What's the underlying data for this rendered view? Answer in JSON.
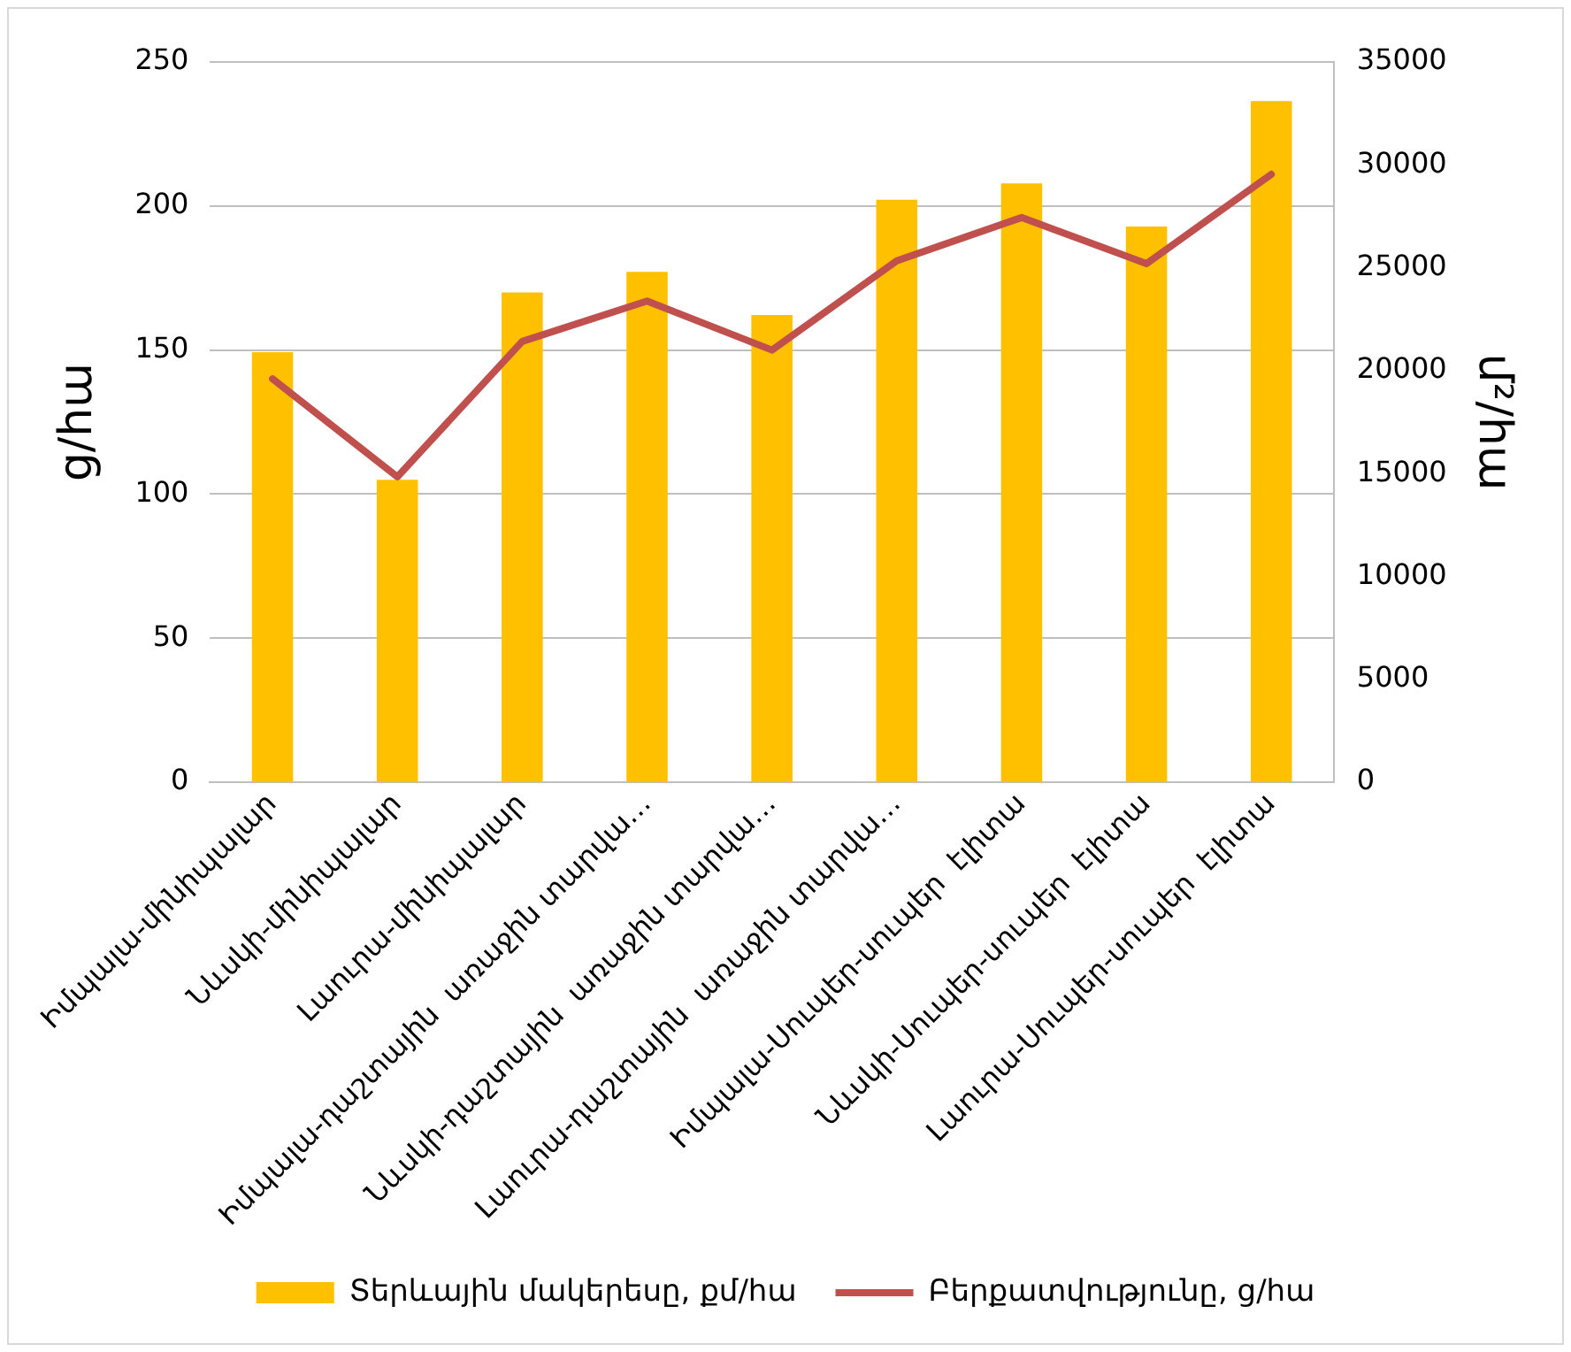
{
  "chart_data": {
    "type": "bar",
    "categories": [
      "Իմպալա-մինիպալար",
      "Նևսկի-մինիպալար",
      "Լաուրա-մինիպալար",
      "Իմպալա-դաշտային  առաջին տարվա…",
      "Նևսկի-դաշտային  առաջին տարվա…",
      "Լաուրա-դաշտային  առաջին տարվա…",
      "Իմպալա-Սուպեր-սուպեր  էլիտա",
      "Նևսկի-Սուպեր-սուպեր  էլիտա",
      "Լաուրա-Սուպեր-սուպեր  էլիտա"
    ],
    "series": [
      {
        "name": "Տերևային մակերեսը, քմ/հա",
        "axis": "y2",
        "color": "#ffc000",
        "values": [
          20900,
          14700,
          23800,
          24800,
          22700,
          28300,
          29100,
          27000,
          33100
        ]
      },
      {
        "name": "Բերքատվությունը, ց/հա",
        "type": "line",
        "color": "#c0504d",
        "values": [
          140,
          106,
          153,
          167,
          150,
          181,
          196,
          180,
          211
        ]
      }
    ],
    "ylabel": "ց/հա",
    "y2label": "մ²/հա",
    "ylim": [
      0,
      250
    ],
    "yticks": [
      0,
      50,
      100,
      150,
      200,
      250
    ],
    "y2lim": [
      0,
      35000
    ],
    "y2ticks": [
      0,
      5000,
      10000,
      15000,
      20000,
      25000,
      30000,
      35000
    ],
    "grid": "y",
    "legend": "bottom",
    "marker": "none"
  }
}
